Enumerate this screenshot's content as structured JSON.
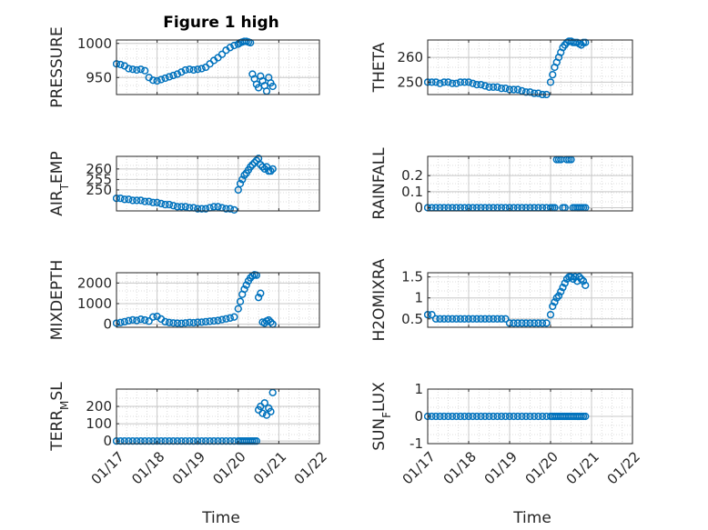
{
  "figure": {
    "title": "Figure 1 high",
    "xlabel": "Time",
    "colors": {
      "marker": "#0072BD",
      "axis": "#262626",
      "grid": "#d2d2d2",
      "background": "#ffffff"
    }
  },
  "chart_data": [
    {
      "type": "scatter",
      "title": "Figure 1 high",
      "ylabel": "PRESSURE",
      "xlim": [
        0,
        5
      ],
      "ylim": [
        925,
        1005
      ],
      "yticks": [
        950,
        1000
      ],
      "ytick_labels": [
        "950",
        "1000"
      ],
      "xticks": [
        0,
        1,
        2,
        3,
        4,
        5
      ],
      "xtick_labels": [
        "01/17",
        "01/18",
        "01/19",
        "01/20",
        "01/21",
        "01/22"
      ],
      "show_xtick_labels": false,
      "x": [
        0.0,
        0.1,
        0.2,
        0.3,
        0.4,
        0.5,
        0.6,
        0.7,
        0.8,
        0.9,
        1.0,
        1.1,
        1.2,
        1.3,
        1.4,
        1.5,
        1.6,
        1.7,
        1.8,
        1.9,
        2.0,
        2.1,
        2.2,
        2.3,
        2.4,
        2.5,
        2.6,
        2.7,
        2.8,
        2.9,
        3.0,
        3.05,
        3.1,
        3.15,
        3.2,
        3.25,
        3.3,
        3.35,
        3.4,
        3.45,
        3.5,
        3.55,
        3.6,
        3.65,
        3.7,
        3.75,
        3.8,
        3.85
      ],
      "y": [
        970,
        969,
        967,
        963,
        962,
        961,
        962,
        960,
        950,
        946,
        945,
        947,
        949,
        951,
        953,
        955,
        958,
        961,
        962,
        961,
        962,
        963,
        965,
        970,
        975,
        979,
        984,
        990,
        994,
        997,
        999,
        1001,
        1002,
        1003,
        1003,
        1002,
        1001,
        955,
        948,
        940,
        935,
        952,
        945,
        938,
        930,
        950,
        942,
        937
      ]
    },
    {
      "type": "scatter",
      "ylabel": "THETA",
      "xlim": [
        0,
        5
      ],
      "ylim": [
        245,
        267
      ],
      "yticks": [
        250,
        260
      ],
      "ytick_labels": [
        "250",
        "260"
      ],
      "xticks": [
        0,
        1,
        2,
        3,
        4,
        5
      ],
      "xtick_labels": [
        "01/17",
        "01/18",
        "01/19",
        "01/20",
        "01/21",
        "01/22"
      ],
      "show_xtick_labels": false,
      "x": [
        0.0,
        0.1,
        0.2,
        0.3,
        0.4,
        0.5,
        0.6,
        0.7,
        0.8,
        0.9,
        1.0,
        1.1,
        1.2,
        1.3,
        1.4,
        1.5,
        1.6,
        1.7,
        1.8,
        1.9,
        2.0,
        2.1,
        2.2,
        2.3,
        2.4,
        2.5,
        2.6,
        2.7,
        2.8,
        2.9,
        3.0,
        3.05,
        3.1,
        3.15,
        3.2,
        3.25,
        3.3,
        3.35,
        3.4,
        3.45,
        3.5,
        3.55,
        3.6,
        3.65,
        3.7,
        3.75,
        3.8,
        3.85
      ],
      "y": [
        250,
        250,
        250,
        249.5,
        250,
        250,
        249.5,
        249.5,
        250,
        250,
        250,
        249.5,
        249,
        249,
        248.5,
        248,
        248,
        248,
        247.5,
        247.5,
        247,
        247,
        247,
        246.5,
        246,
        246,
        245.5,
        245.5,
        245,
        245,
        250,
        253,
        256,
        258,
        260,
        262,
        264,
        265,
        266,
        266.5,
        266.5,
        266,
        266,
        266,
        265.5,
        265,
        266,
        266
      ]
    },
    {
      "type": "scatter",
      "ylabel": "AIR_TEMP",
      "xlim": [
        0,
        5
      ],
      "ylim": [
        240,
        266
      ],
      "yticks": [
        250,
        255,
        260
      ],
      "ytick_labels": [
        "250",
        "255",
        "260"
      ],
      "xticks": [
        0,
        1,
        2,
        3,
        4,
        5
      ],
      "xtick_labels": [
        "01/17",
        "01/18",
        "01/19",
        "01/20",
        "01/21",
        "01/22"
      ],
      "show_xtick_labels": false,
      "x": [
        0.0,
        0.1,
        0.2,
        0.3,
        0.4,
        0.5,
        0.6,
        0.7,
        0.8,
        0.9,
        1.0,
        1.1,
        1.2,
        1.3,
        1.4,
        1.5,
        1.6,
        1.7,
        1.8,
        1.9,
        2.0,
        2.1,
        2.2,
        2.3,
        2.4,
        2.5,
        2.6,
        2.7,
        2.8,
        2.9,
        3.0,
        3.05,
        3.1,
        3.15,
        3.2,
        3.25,
        3.3,
        3.35,
        3.4,
        3.45,
        3.5,
        3.55,
        3.6,
        3.65,
        3.7,
        3.75,
        3.8,
        3.85
      ],
      "y": [
        246,
        246,
        245.5,
        245.5,
        245,
        245,
        245,
        244.5,
        244.5,
        244,
        244,
        243.5,
        243,
        243,
        242.5,
        242,
        242,
        242,
        241.5,
        241.5,
        241,
        241,
        241,
        241.5,
        242,
        242,
        241.5,
        241,
        241,
        240.5,
        250,
        253,
        255,
        257,
        258,
        259.5,
        261,
        262,
        263,
        264,
        265,
        262,
        261,
        260,
        261,
        259,
        259,
        260
      ]
    },
    {
      "type": "scatter",
      "ylabel": "RAINFALL",
      "xlim": [
        0,
        5
      ],
      "ylim": [
        -0.02,
        0.32
      ],
      "yticks": [
        0,
        0.1,
        0.2
      ],
      "ytick_labels": [
        "0",
        "0.1",
        "0.2"
      ],
      "xticks": [
        0,
        1,
        2,
        3,
        4,
        5
      ],
      "xtick_labels": [
        "01/17",
        "01/18",
        "01/19",
        "01/20",
        "01/21",
        "01/22"
      ],
      "show_xtick_labels": false,
      "x": [
        0.0,
        0.1,
        0.2,
        0.3,
        0.4,
        0.5,
        0.6,
        0.7,
        0.8,
        0.9,
        1.0,
        1.1,
        1.2,
        1.3,
        1.4,
        1.5,
        1.6,
        1.7,
        1.8,
        1.9,
        2.0,
        2.1,
        2.2,
        2.3,
        2.4,
        2.5,
        2.6,
        2.7,
        2.8,
        2.9,
        3.0,
        3.05,
        3.1,
        3.15,
        3.2,
        3.25,
        3.3,
        3.35,
        3.4,
        3.45,
        3.5,
        3.55,
        3.6,
        3.65,
        3.7,
        3.75,
        3.8,
        3.85
      ],
      "y": [
        0,
        0,
        0,
        0,
        0,
        0,
        0,
        0,
        0,
        0,
        0,
        0,
        0,
        0,
        0,
        0,
        0,
        0,
        0,
        0,
        0,
        0,
        0,
        0,
        0,
        0,
        0,
        0,
        0,
        0,
        0,
        0,
        0,
        0.3,
        0.3,
        0.3,
        0,
        0,
        0.3,
        0.3,
        0.3,
        0,
        0,
        0,
        0,
        0,
        0,
        0
      ]
    },
    {
      "type": "scatter",
      "ylabel": "MIXDEPTH",
      "xlim": [
        0,
        5
      ],
      "ylim": [
        -150,
        2500
      ],
      "yticks": [
        0,
        1000,
        2000
      ],
      "ytick_labels": [
        "0",
        "1000",
        "2000"
      ],
      "xticks": [
        0,
        1,
        2,
        3,
        4,
        5
      ],
      "xtick_labels": [
        "01/17",
        "01/18",
        "01/19",
        "01/20",
        "01/21",
        "01/22"
      ],
      "show_xtick_labels": false,
      "x": [
        0.0,
        0.1,
        0.2,
        0.3,
        0.4,
        0.5,
        0.6,
        0.7,
        0.8,
        0.9,
        1.0,
        1.1,
        1.2,
        1.3,
        1.4,
        1.5,
        1.6,
        1.7,
        1.8,
        1.9,
        2.0,
        2.1,
        2.2,
        2.3,
        2.4,
        2.5,
        2.6,
        2.7,
        2.8,
        2.9,
        3.0,
        3.05,
        3.1,
        3.15,
        3.2,
        3.25,
        3.3,
        3.35,
        3.4,
        3.45,
        3.5,
        3.55,
        3.6,
        3.65,
        3.7,
        3.75,
        3.8,
        3.85
      ],
      "y": [
        50,
        80,
        120,
        170,
        210,
        180,
        240,
        200,
        150,
        350,
        380,
        250,
        120,
        80,
        60,
        50,
        40,
        60,
        80,
        70,
        90,
        100,
        120,
        140,
        160,
        180,
        220,
        260,
        300,
        350,
        750,
        1100,
        1450,
        1700,
        1900,
        2100,
        2250,
        2350,
        2400,
        2380,
        1300,
        1500,
        100,
        50,
        150,
        200,
        100,
        0
      ]
    },
    {
      "type": "scatter",
      "ylabel": "H2OMIXRA",
      "xlim": [
        0,
        5
      ],
      "ylim": [
        0.3,
        1.6
      ],
      "yticks": [
        0.5,
        1,
        1.5
      ],
      "ytick_labels": [
        "0.5",
        "1",
        "1.5"
      ],
      "xticks": [
        0,
        1,
        2,
        3,
        4,
        5
      ],
      "xtick_labels": [
        "01/17",
        "01/18",
        "01/19",
        "01/20",
        "01/21",
        "01/22"
      ],
      "show_xtick_labels": false,
      "x": [
        0.0,
        0.1,
        0.2,
        0.3,
        0.4,
        0.5,
        0.6,
        0.7,
        0.8,
        0.9,
        1.0,
        1.1,
        1.2,
        1.3,
        1.4,
        1.5,
        1.6,
        1.7,
        1.8,
        1.9,
        2.0,
        2.1,
        2.2,
        2.3,
        2.4,
        2.5,
        2.6,
        2.7,
        2.8,
        2.9,
        3.0,
        3.05,
        3.1,
        3.15,
        3.2,
        3.25,
        3.3,
        3.35,
        3.4,
        3.45,
        3.5,
        3.55,
        3.6,
        3.65,
        3.7,
        3.75,
        3.8,
        3.85
      ],
      "y": [
        0.6,
        0.6,
        0.5,
        0.5,
        0.5,
        0.5,
        0.5,
        0.5,
        0.5,
        0.5,
        0.5,
        0.5,
        0.5,
        0.5,
        0.5,
        0.5,
        0.5,
        0.5,
        0.5,
        0.5,
        0.4,
        0.4,
        0.4,
        0.4,
        0.4,
        0.4,
        0.4,
        0.4,
        0.4,
        0.4,
        0.6,
        0.8,
        0.9,
        1.0,
        1.05,
        1.15,
        1.25,
        1.35,
        1.45,
        1.5,
        1.5,
        1.45,
        1.5,
        1.4,
        1.5,
        1.45,
        1.4,
        1.3
      ]
    },
    {
      "type": "scatter",
      "ylabel": "TERR_MSL",
      "xlim": [
        0,
        5
      ],
      "ylim": [
        -15,
        300
      ],
      "yticks": [
        0,
        100,
        200
      ],
      "ytick_labels": [
        "0",
        "100",
        "200"
      ],
      "xticks": [
        0,
        1,
        2,
        3,
        4,
        5
      ],
      "xtick_labels": [
        "01/17",
        "01/18",
        "01/19",
        "01/20",
        "01/21",
        "01/22"
      ],
      "show_xtick_labels": true,
      "x": [
        0.0,
        0.1,
        0.2,
        0.3,
        0.4,
        0.5,
        0.6,
        0.7,
        0.8,
        0.9,
        1.0,
        1.1,
        1.2,
        1.3,
        1.4,
        1.5,
        1.6,
        1.7,
        1.8,
        1.9,
        2.0,
        2.1,
        2.2,
        2.3,
        2.4,
        2.5,
        2.6,
        2.7,
        2.8,
        2.9,
        3.0,
        3.05,
        3.1,
        3.15,
        3.2,
        3.25,
        3.3,
        3.35,
        3.4,
        3.45,
        3.5,
        3.55,
        3.6,
        3.65,
        3.7,
        3.75,
        3.8,
        3.85
      ],
      "y": [
        0,
        0,
        0,
        0,
        0,
        0,
        0,
        0,
        0,
        0,
        0,
        0,
        0,
        0,
        0,
        0,
        0,
        0,
        0,
        0,
        0,
        0,
        0,
        0,
        0,
        0,
        0,
        0,
        0,
        0,
        0,
        0,
        0,
        0,
        0,
        0,
        0,
        0,
        0,
        0,
        180,
        200,
        160,
        220,
        150,
        190,
        170,
        280
      ]
    },
    {
      "type": "scatter",
      "ylabel": "SUN_FLUX",
      "xlim": [
        0,
        5
      ],
      "ylim": [
        -1,
        1
      ],
      "yticks": [
        -1,
        0,
        1
      ],
      "ytick_labels": [
        "-1",
        "0",
        "1"
      ],
      "xticks": [
        0,
        1,
        2,
        3,
        4,
        5
      ],
      "xtick_labels": [
        "01/17",
        "01/18",
        "01/19",
        "01/20",
        "01/21",
        "01/22"
      ],
      "show_xtick_labels": true,
      "x": [
        0.0,
        0.1,
        0.2,
        0.3,
        0.4,
        0.5,
        0.6,
        0.7,
        0.8,
        0.9,
        1.0,
        1.1,
        1.2,
        1.3,
        1.4,
        1.5,
        1.6,
        1.7,
        1.8,
        1.9,
        2.0,
        2.1,
        2.2,
        2.3,
        2.4,
        2.5,
        2.6,
        2.7,
        2.8,
        2.9,
        3.0,
        3.05,
        3.1,
        3.15,
        3.2,
        3.25,
        3.3,
        3.35,
        3.4,
        3.45,
        3.5,
        3.55,
        3.6,
        3.65,
        3.7,
        3.75,
        3.8,
        3.85
      ],
      "y": [
        0,
        0,
        0,
        0,
        0,
        0,
        0,
        0,
        0,
        0,
        0,
        0,
        0,
        0,
        0,
        0,
        0,
        0,
        0,
        0,
        0,
        0,
        0,
        0,
        0,
        0,
        0,
        0,
        0,
        0,
        0,
        0,
        0,
        0,
        0,
        0,
        0,
        0,
        0,
        0,
        0,
        0,
        0,
        0,
        0,
        0,
        0,
        0
      ]
    }
  ]
}
